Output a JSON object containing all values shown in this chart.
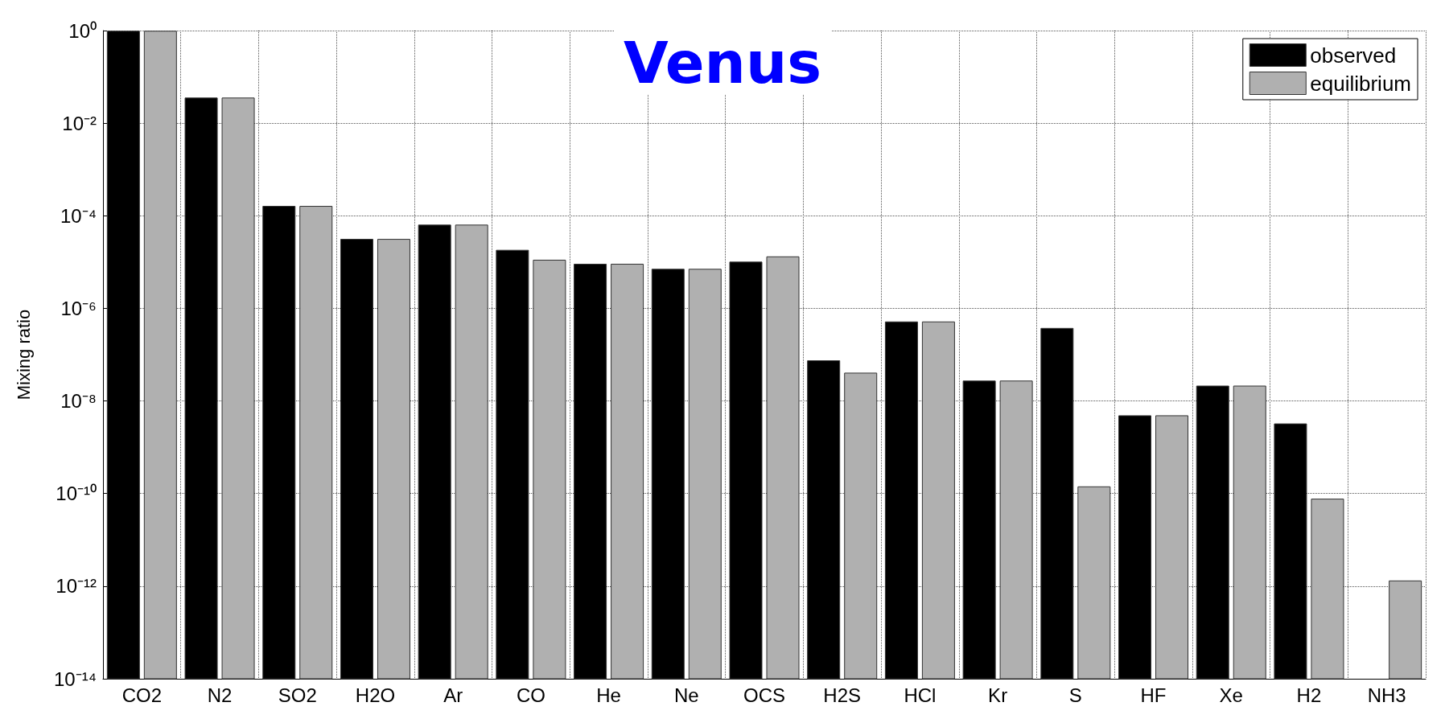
{
  "chart_data": {
    "type": "bar",
    "title": "Venus",
    "ylabel": "Mixing ratio",
    "log": true,
    "grid": true,
    "legend": "top right",
    "categories": [
      "CO2",
      "N2",
      "SO2",
      "H2O",
      "Ar",
      "CO",
      "He",
      "Ne",
      "OCS",
      "H2S",
      "HCl",
      "Kr",
      "S",
      "HF",
      "Xe",
      "H2",
      "NH3"
    ],
    "ylim": [
      1e-14,
      1
    ],
    "yticks": [
      {
        "value": 1e-14,
        "label": "10⁻¹⁴"
      },
      {
        "value": 1e-12,
        "label": "10⁻¹²"
      },
      {
        "value": 1e-10,
        "label": "10⁻¹⁰"
      },
      {
        "value": 1e-08,
        "label": "10⁻⁸"
      },
      {
        "value": 1e-06,
        "label": "10⁻⁶"
      },
      {
        "value": 0.0001,
        "label": "10⁻⁴"
      },
      {
        "value": 0.01,
        "label": "10⁻²"
      },
      {
        "value": 1,
        "label": "10⁰"
      }
    ],
    "series": [
      {
        "name": "observed",
        "color": "#000000",
        "values": [
          0.97,
          0.035,
          0.00016,
          3.1e-05,
          6.3e-05,
          1.8e-05,
          9e-06,
          7e-06,
          1e-05,
          7.4e-08,
          5.1e-07,
          2.7e-08,
          3.7e-07,
          4.8e-09,
          2.1e-08,
          3.2e-09,
          null
        ]
      },
      {
        "name": "equilibrium",
        "color": "#b0b0b0",
        "values": [
          0.97,
          0.035,
          0.00016,
          3.1e-05,
          6.3e-05,
          1.1e-05,
          9e-06,
          7e-06,
          1.3e-05,
          4e-08,
          5.1e-07,
          2.7e-08,
          1.4e-10,
          4.8e-09,
          2.1e-08,
          7.6e-11,
          1.3e-12
        ]
      }
    ]
  }
}
